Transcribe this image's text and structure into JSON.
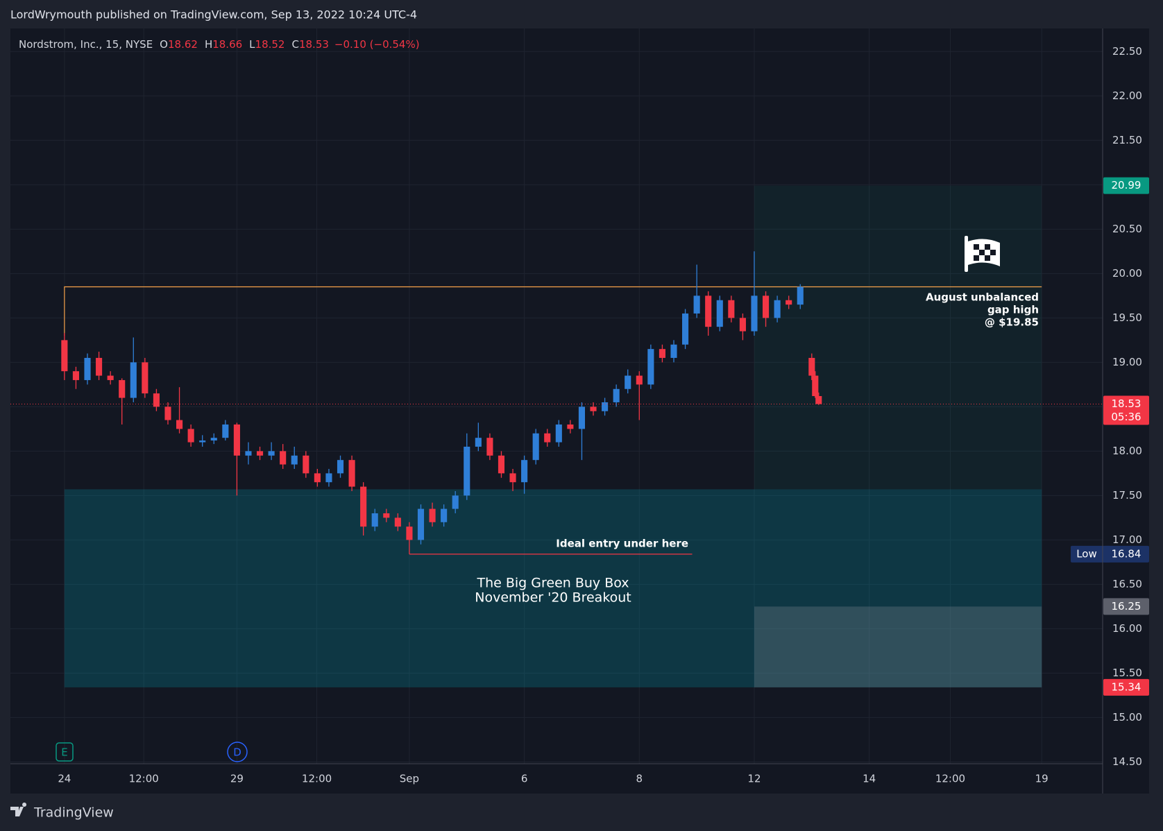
{
  "header": {
    "publisher": "LordWrymouth published on TradingView.com, Sep 13, 2022 10:24 UTC-4"
  },
  "footer": {
    "brand": "TradingView"
  },
  "chart_data": {
    "type": "candlestick",
    "symbol": "Nordstrom, Inc., 15, NYSE",
    "ohlc": [
      {
        "label": "O",
        "value": 18.62
      },
      {
        "label": "H",
        "value": 18.66
      },
      {
        "label": "L",
        "value": 18.52
      },
      {
        "label": "C",
        "value": 18.53
      }
    ],
    "change": "−0.10 (−0.54%)",
    "up_color": "#2f7fd8",
    "down_color": "#f23645",
    "grid": true,
    "candles": {
      "x": [
        0.0,
        0.2,
        0.4,
        0.6,
        0.8,
        1.0,
        1.2,
        1.4,
        1.6,
        1.8,
        2.0,
        2.2,
        2.4,
        2.6,
        2.8,
        3.0,
        3.2,
        3.4,
        3.6,
        3.8,
        4.0,
        4.2,
        4.4,
        4.6,
        4.8,
        5.0,
        5.2,
        5.4,
        5.6,
        5.8,
        6.0,
        6.2,
        6.4,
        6.6,
        6.8,
        7.0,
        7.2,
        7.4,
        7.6,
        7.8,
        8.0,
        8.2,
        8.4,
        8.6,
        8.8,
        9.0,
        9.2,
        9.4,
        9.6,
        9.8,
        10.0,
        10.2,
        10.4,
        10.6,
        10.8,
        11.0,
        11.2,
        11.4,
        11.6,
        11.8,
        12.0,
        12.2,
        12.4,
        12.6,
        12.8,
        13.0,
        13.06,
        13.12
      ],
      "open": [
        19.25,
        18.9,
        18.8,
        19.05,
        18.85,
        18.8,
        18.6,
        19.0,
        18.65,
        18.5,
        18.35,
        18.25,
        18.1,
        18.12,
        18.15,
        18.3,
        17.95,
        18.0,
        17.95,
        18.0,
        17.85,
        17.95,
        17.75,
        17.65,
        17.75,
        17.9,
        17.6,
        17.15,
        17.3,
        17.25,
        17.15,
        17.0,
        17.35,
        17.2,
        17.35,
        17.5,
        18.05,
        18.15,
        17.95,
        17.75,
        17.65,
        17.9,
        18.2,
        18.1,
        18.3,
        18.25,
        18.5,
        18.45,
        18.55,
        18.7,
        18.85,
        18.75,
        19.15,
        19.05,
        19.2,
        19.55,
        19.75,
        19.4,
        19.7,
        19.5,
        19.35,
        19.75,
        19.5,
        19.7,
        19.65,
        19.05,
        18.85,
        18.62
      ],
      "high": [
        19.33,
        18.95,
        19.1,
        19.12,
        18.9,
        18.82,
        19.28,
        19.05,
        18.7,
        18.55,
        18.72,
        18.3,
        18.18,
        18.2,
        18.35,
        18.32,
        18.1,
        18.05,
        18.1,
        18.08,
        18.05,
        18.0,
        17.8,
        17.8,
        17.95,
        17.95,
        17.65,
        17.35,
        17.35,
        17.3,
        17.2,
        17.4,
        17.42,
        17.4,
        17.55,
        18.2,
        18.32,
        18.2,
        18.0,
        17.8,
        17.95,
        18.25,
        18.25,
        18.35,
        18.35,
        18.55,
        18.55,
        18.6,
        18.75,
        18.92,
        18.9,
        19.2,
        19.2,
        19.25,
        19.6,
        20.1,
        19.8,
        19.75,
        19.75,
        19.55,
        20.25,
        19.8,
        19.75,
        19.75,
        19.88,
        19.1,
        18.9,
        18.66
      ],
      "low": [
        18.8,
        18.7,
        18.75,
        18.8,
        18.75,
        18.3,
        18.55,
        18.6,
        18.45,
        18.3,
        18.2,
        18.05,
        18.05,
        18.08,
        18.12,
        17.5,
        17.85,
        17.9,
        17.9,
        17.8,
        17.8,
        17.7,
        17.6,
        17.6,
        17.7,
        17.55,
        17.05,
        17.1,
        17.2,
        17.1,
        16.84,
        16.95,
        17.15,
        17.15,
        17.3,
        17.45,
        18.0,
        17.9,
        17.7,
        17.55,
        17.52,
        17.85,
        18.05,
        18.05,
        18.2,
        17.9,
        18.4,
        18.4,
        18.5,
        18.65,
        18.35,
        18.7,
        19.0,
        19.0,
        19.15,
        19.5,
        19.3,
        19.35,
        19.45,
        19.25,
        19.3,
        19.4,
        19.45,
        19.6,
        19.6,
        18.8,
        18.6,
        18.52
      ],
      "close": [
        18.9,
        18.8,
        19.05,
        18.85,
        18.8,
        18.6,
        19.0,
        18.65,
        18.5,
        18.35,
        18.25,
        18.1,
        18.12,
        18.15,
        18.3,
        17.95,
        18.0,
        17.95,
        18.0,
        17.85,
        17.95,
        17.75,
        17.65,
        17.75,
        17.9,
        17.6,
        17.15,
        17.3,
        17.25,
        17.15,
        17.0,
        17.35,
        17.2,
        17.35,
        17.5,
        18.05,
        18.15,
        17.95,
        17.75,
        17.65,
        17.9,
        18.2,
        18.1,
        18.3,
        18.25,
        18.5,
        18.45,
        18.55,
        18.7,
        18.85,
        18.75,
        19.15,
        19.05,
        19.2,
        19.55,
        19.75,
        19.4,
        19.7,
        19.5,
        19.35,
        19.75,
        19.5,
        19.7,
        19.65,
        19.85,
        18.85,
        18.62,
        18.53
      ]
    },
    "xlim": [
      -0.94,
      18.06
    ],
    "xticks": [
      {
        "value": 0,
        "label": "24"
      },
      {
        "value": 1.38,
        "label": "12:00"
      },
      {
        "value": 3,
        "label": "29"
      },
      {
        "value": 4.39,
        "label": "12:00"
      },
      {
        "value": 6,
        "label": "Sep"
      },
      {
        "value": 8,
        "label": "6"
      },
      {
        "value": 10,
        "label": "8"
      },
      {
        "value": 12,
        "label": "12"
      },
      {
        "value": 14,
        "label": "14"
      },
      {
        "value": 15.41,
        "label": "12:00"
      },
      {
        "value": 17,
        "label": "19"
      }
    ],
    "ylim": [
      14.48,
      22.76
    ],
    "yticks": [
      {
        "value": 14.5,
        "label": "14.50"
      },
      {
        "value": 15,
        "label": "15.00"
      },
      {
        "value": 15.5,
        "label": "15.50"
      },
      {
        "value": 16,
        "label": "16.00"
      },
      {
        "value": 16.5,
        "label": "16.50"
      },
      {
        "value": 17,
        "label": "17.00"
      },
      {
        "value": 17.5,
        "label": "17.50"
      },
      {
        "value": 18,
        "label": "18.00"
      },
      {
        "value": 18.5,
        "label": "18.50"
      },
      {
        "value": 19,
        "label": "19.00"
      },
      {
        "value": 19.5,
        "label": "19.50"
      },
      {
        "value": 20,
        "label": "20.00"
      },
      {
        "value": 20.5,
        "label": "20.50"
      },
      {
        "value": 21,
        "label": "21.00"
      },
      {
        "value": 21.5,
        "label": "21.50"
      },
      {
        "value": 22,
        "label": "22.00"
      },
      {
        "value": 22.5,
        "label": "22.50"
      }
    ],
    "zones": [
      {
        "x": [
          12,
          17
        ],
        "y": [
          17.57,
          20.99
        ],
        "color": "rgba(8,153,129,0.09)"
      },
      {
        "x": [
          0,
          17
        ],
        "y": [
          15.34,
          17.57
        ],
        "color": "rgba(0,150,170,0.25)"
      },
      {
        "x": [
          12,
          17
        ],
        "y": [
          15.34,
          16.25
        ],
        "color": "rgba(130,135,145,0.3)"
      }
    ],
    "lines": [
      {
        "x": [
          0,
          0,
          17
        ],
        "y": [
          19.3,
          19.85,
          19.85
        ],
        "color": "#f7a24a"
      },
      {
        "x": [
          6,
          10.92
        ],
        "y": [
          16.84,
          16.84
        ],
        "color": "#f23645"
      }
    ],
    "price_labels": [
      {
        "value": 20.99,
        "color": "#089981"
      },
      {
        "value": 18.53,
        "color": "#f23645",
        "countdown": "05:36"
      },
      {
        "value": 16.84,
        "color": "#1c3266",
        "title": "Low"
      },
      {
        "value": 16.25,
        "color": "#5d606b"
      },
      {
        "value": 15.34,
        "color": "#f23645"
      }
    ],
    "annotations": {
      "gap": [
        "August unbalanced",
        "gap high",
        "@ $19.85"
      ],
      "entry": "Ideal entry under here",
      "box": [
        "The Big Green Buy Box",
        "November '20 Breakout"
      ]
    },
    "events": [
      "E",
      "D"
    ]
  }
}
